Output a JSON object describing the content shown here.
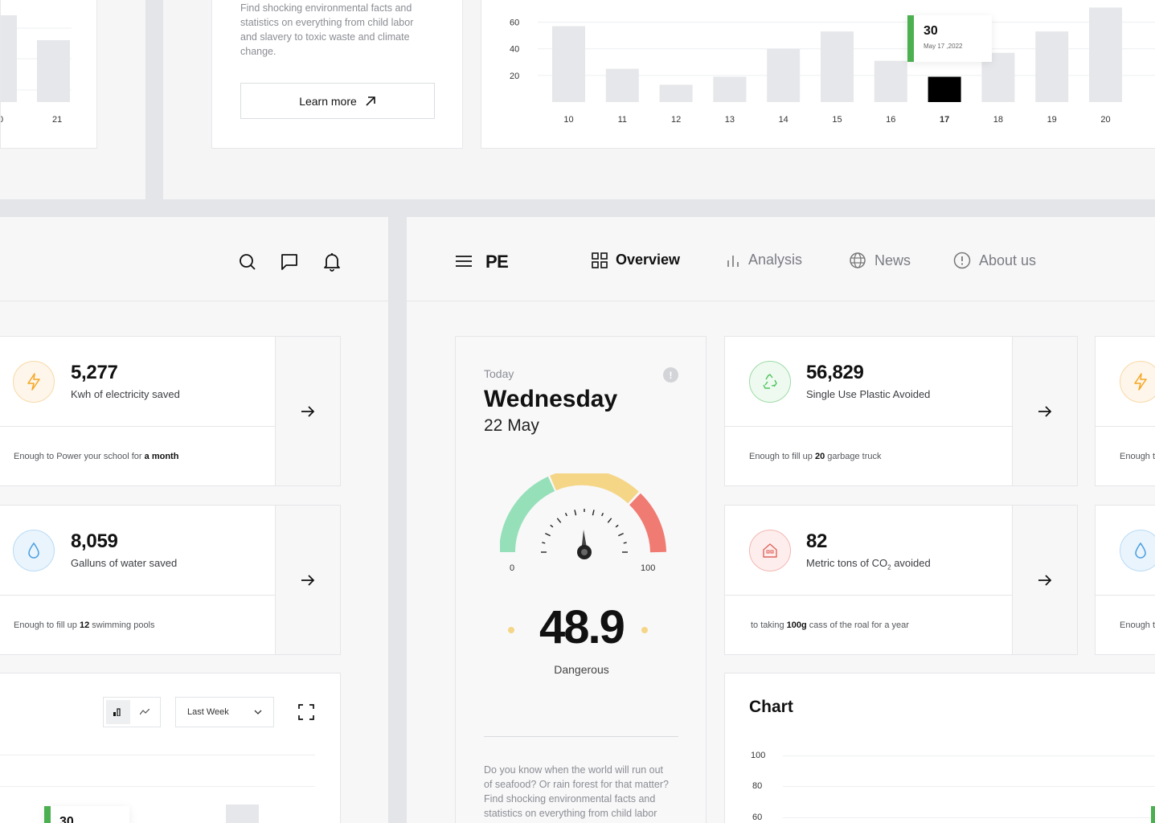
{
  "top_left": {
    "tick_left": "0",
    "tick_right": "21",
    "bar_value": 21
  },
  "info_card": {
    "text_lines": [
      "Find shocking environmental facts and",
      "statistics on everything from child labor",
      "and slavery to toxic waste and climate",
      "change."
    ],
    "learn_more": "Learn more"
  },
  "top_chart": {
    "tooltip": {
      "value": "30",
      "date": "May 17 ,2022"
    }
  },
  "chart_data": [
    {
      "type": "bar",
      "categories": [
        "10",
        "11",
        "12",
        "13",
        "14",
        "15",
        "16",
        "17",
        "18",
        "19",
        "20"
      ],
      "values": [
        57,
        25,
        13,
        19,
        40,
        53,
        31,
        19,
        37,
        53,
        71
      ],
      "highlight_index": 7,
      "y_ticks": [
        "20",
        "40",
        "60"
      ],
      "ylim": [
        0,
        70
      ],
      "grid": true
    }
  ],
  "left_panel": {
    "stats": [
      {
        "value": "5,277",
        "label": "Kwh of electricity saved",
        "foot_pre": "Enough to Power your school for ",
        "foot_bold": "a month",
        "foot_post": "",
        "icon": "lightning-icon",
        "color": "#f5a623"
      },
      {
        "value": "8,059",
        "label": "Galluns of water saved",
        "foot_pre": "Enough to fill up ",
        "foot_bold": "12",
        "foot_post": " swimming pools",
        "icon": "water-drop-icon",
        "color": "#4a9fe0"
      }
    ],
    "chart_controls": {
      "period": "Last Week"
    },
    "bottom_tooltip_value": "30"
  },
  "nav": {
    "brand": "PE",
    "items": [
      {
        "label": "Overview",
        "icon": "grid-icon"
      },
      {
        "label": "Analysis",
        "icon": "bar-chart-icon"
      },
      {
        "label": "News",
        "icon": "globe-icon"
      },
      {
        "label": "About us",
        "icon": "info-icon"
      }
    ]
  },
  "today_card": {
    "today": "Today",
    "day": "Wednesday",
    "date": "22 May",
    "gauge_min": "0",
    "gauge_max": "100",
    "gauge_value": 48.9,
    "value_text": "48.9",
    "status": "Dangerous",
    "blurb_lines": [
      "Do you know when the world will run out",
      "of seafood? Or rain forest for that matter?",
      "Find shocking environmental facts and",
      "statistics on everything from child labor"
    ]
  },
  "right_stats": [
    {
      "value": "56,829",
      "label": "Single Use Plastic Avoided",
      "foot_pre": "Enough to fill up ",
      "foot_bold": "20",
      "foot_post": " garbage truck",
      "icon": "recycle-icon",
      "color": "#4cc35a"
    },
    {
      "value": "82",
      "label_pre": "Metric tons of CO",
      "label_sub": "2",
      "label_post": " avoided",
      "foot_pre": "to taking ",
      "foot_bold": "100g",
      "foot_post": " cass of the roal for a year",
      "icon": "house-icon",
      "color": "#e0645c"
    }
  ],
  "edge_cards": [
    {
      "foot": "Enough t",
      "icon": "lightning-icon"
    },
    {
      "foot": "Enough t",
      "icon": "water-drop-icon"
    }
  ],
  "bottom_chart": {
    "title": "Chart",
    "y_ticks": [
      "100",
      "80",
      "60"
    ]
  }
}
